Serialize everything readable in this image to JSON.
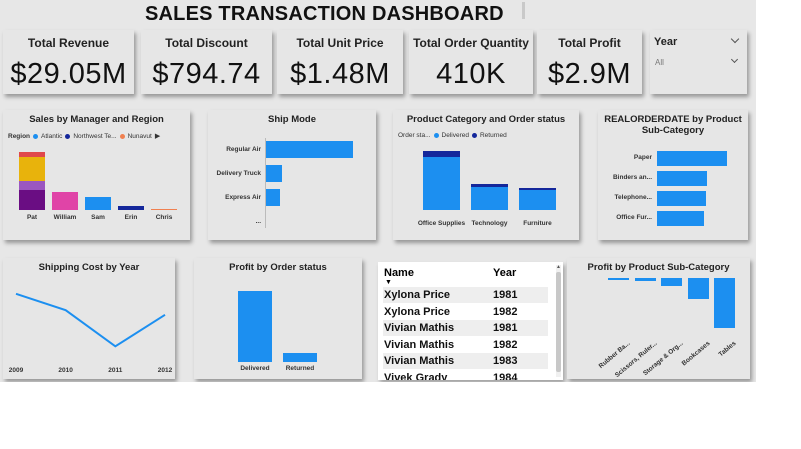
{
  "title": "SALES TRANSACTION DASHBOARD",
  "kpis": [
    {
      "label": "Total Revenue",
      "value": "$29.05M"
    },
    {
      "label": "Total Discount",
      "value": "$794.74"
    },
    {
      "label": "Total Unit Price",
      "value": "$1.48M"
    },
    {
      "label": "Total Order Quantity",
      "value": "410K"
    },
    {
      "label": "Total Profit",
      "value": "$2.9M"
    }
  ],
  "slicer": {
    "label": "Year",
    "value": "All"
  },
  "colors": {
    "blue": "#1c8ff0",
    "navy": "#14279b",
    "red": "#e0484b",
    "yellow": "#e8b30c",
    "purple": "#9b57c0",
    "dark_purple": "#6a0d83",
    "magenta": "#e044a7",
    "orange": "#f08050"
  },
  "sales_by_manager": {
    "title": "Sales by Manager and Region",
    "legend_title": "Region",
    "legend": [
      {
        "name": "Atlantic",
        "color": "#1c8ff0"
      },
      {
        "name": "Northwest Te...",
        "color": "#14279b"
      },
      {
        "name": "Nunavut",
        "color": "#f08050"
      }
    ],
    "chart_data": {
      "type": "bar",
      "stacked": true,
      "categories": [
        "Pat",
        "William",
        "Sam",
        "Erin",
        "Chris"
      ],
      "max": 100,
      "bars": [
        [
          {
            "value": 32,
            "color": "#6a0d83"
          },
          {
            "value": 14,
            "color": "#9b57c0"
          },
          {
            "value": 38,
            "color": "#e8b30c"
          },
          {
            "value": 8,
            "color": "#e0484b"
          }
        ],
        [
          {
            "value": 28,
            "color": "#e044a7"
          }
        ],
        [
          {
            "value": 20,
            "color": "#1c8ff0"
          }
        ],
        [
          {
            "value": 7,
            "color": "#14279b"
          }
        ],
        [
          {
            "value": 2,
            "color": "#f08050"
          }
        ]
      ]
    }
  },
  "ship_mode": {
    "title": "Ship Mode",
    "chart_data": {
      "type": "bar",
      "orientation": "horizontal",
      "categories": [
        "Regular Air",
        "Delivery Truck",
        "Express Air",
        "..."
      ],
      "values": [
        100,
        18,
        16,
        0
      ],
      "max": 100
    }
  },
  "product_category": {
    "title": "Product Category and Order status",
    "legend_title": "Order sta...",
    "legend": [
      {
        "name": "Delivered",
        "color": "#1c8ff0"
      },
      {
        "name": "Returned",
        "color": "#14279b"
      }
    ],
    "chart_data": {
      "type": "bar",
      "stacked": true,
      "categories": [
        "Office Supplies",
        "Technology",
        "Furniture"
      ],
      "series": [
        {
          "name": "Delivered",
          "values": [
            50,
            22,
            19
          ]
        },
        {
          "name": "Returned",
          "values": [
            5,
            2,
            2
          ]
        }
      ],
      "max": 60
    }
  },
  "realorderdate": {
    "title": "REALORDERDATE by Product Sub-Category",
    "chart_data": {
      "type": "bar",
      "orientation": "horizontal",
      "categories": [
        "Paper",
        "Binders an...",
        "Telephone...",
        "Office Fur..."
      ],
      "values": [
        100,
        72,
        70,
        67
      ],
      "max": 100
    }
  },
  "shipping_cost": {
    "title": "Shipping Cost by Year",
    "chart_data": {
      "type": "line",
      "x": [
        "2009",
        "2010",
        "2011",
        "2012"
      ],
      "values": [
        100,
        86,
        55,
        82
      ],
      "ylim": [
        45,
        105
      ]
    }
  },
  "profit_by_status": {
    "title": "Profit by Order status",
    "chart_data": {
      "type": "bar",
      "categories": [
        "Delivered",
        "Returned"
      ],
      "values": [
        100,
        13
      ],
      "max": 100
    }
  },
  "table": {
    "headers": [
      "Name",
      "Year"
    ],
    "rows": [
      [
        "Xylona Price",
        "1981"
      ],
      [
        "Xylona Price",
        "1982"
      ],
      [
        "Vivian Mathis",
        "1981"
      ],
      [
        "Vivian Mathis",
        "1982"
      ],
      [
        "Vivian Mathis",
        "1983"
      ],
      [
        "Vivek Grady",
        "1984"
      ]
    ]
  },
  "profit_by_subcat": {
    "title": "Profit by Product Sub-Category",
    "chart_data": {
      "type": "bar",
      "categories": [
        "Rubber Ba...",
        "Scissors, Ruler...",
        "Storage & Org...",
        "Bookcases",
        "Tables"
      ],
      "values": [
        -1,
        -4,
        -10,
        -26,
        -62
      ],
      "min": -65,
      "max": 0
    }
  }
}
